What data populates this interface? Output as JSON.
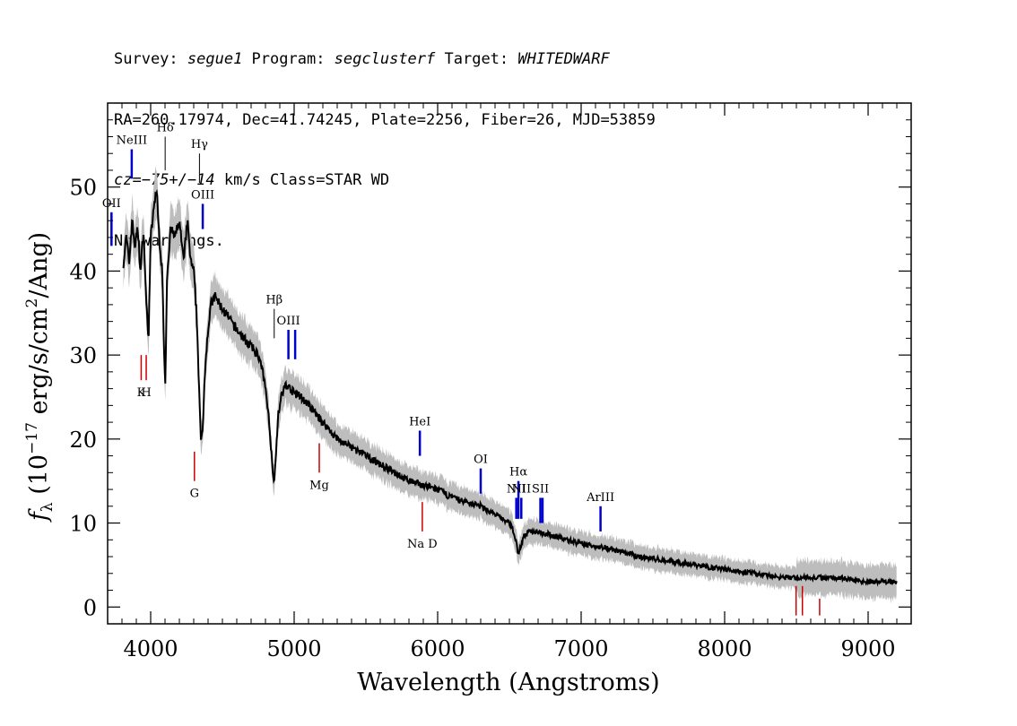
{
  "header": {
    "line1": {
      "survey_label": "Survey: ",
      "survey": "segue1",
      "program_label": " Program: ",
      "program": "segclusterf",
      "target_label": " Target: ",
      "target": "WHITEDWARF"
    },
    "line2": "RA=260.17974, Dec=41.74245, Plate=2256, Fiber=26, MJD=53859",
    "line3": {
      "cz_label": "cz",
      "cz_value": "=−75+/−14",
      "cz_unit": " km/s Class=STAR WD"
    },
    "line4": "No warnings."
  },
  "chart_data": {
    "type": "line",
    "xlabel": "Wavelength (Angstroms)",
    "ylabel": "fλ (10⁻¹⁷ erg/s/cm²/Ang)",
    "ylabel_parts": {
      "f": "f",
      "sub": "λ",
      "pre": " (10",
      "exp1": "−17",
      "mid": " erg/s/cm",
      "exp2": "2",
      "post": "/Ang)"
    },
    "xlim": [
      3700,
      9300
    ],
    "ylim": [
      -2,
      60
    ],
    "xticks": [
      4000,
      5000,
      6000,
      7000,
      8000,
      9000
    ],
    "yticks": [
      0,
      10,
      20,
      30,
      40,
      50
    ],
    "xtick_labels": [
      "4000",
      "5000",
      "6000",
      "7000",
      "8000",
      "9000"
    ],
    "ytick_labels": [
      "0",
      "10",
      "20",
      "30",
      "40",
      "50"
    ],
    "colors": {
      "flux": "#000000",
      "error_band": "#bdbdbd",
      "emission": "#0000cc",
      "absorption": "#cc0000"
    },
    "series": [
      {
        "x": [
          3810,
          3830,
          3850,
          3870,
          3890,
          3910,
          3930,
          3950,
          3970,
          3985,
          4000,
          4020,
          4040,
          4060,
          4080,
          4101,
          4115,
          4140,
          4170,
          4200,
          4230,
          4255,
          4280,
          4300,
          4320,
          4340,
          4350,
          4362,
          4380,
          4400,
          4420,
          4450,
          4480,
          4520,
          4560,
          4600,
          4650,
          4700,
          4750,
          4780,
          4810,
          4830,
          4850,
          4861,
          4875,
          4890,
          4910,
          4940,
          4970,
          5000,
          5050,
          5100,
          5150,
          5200,
          5300,
          5400,
          5500,
          5600,
          5700,
          5800,
          5900,
          6000,
          6100,
          6200,
          6300,
          6400,
          6500,
          6530,
          6550,
          6563,
          6575,
          6600,
          6650,
          6700,
          6800,
          6900,
          7000,
          7200,
          7400,
          7600,
          7800,
          8000,
          8200,
          8400,
          8600,
          8800,
          9000,
          9200
        ],
        "y": [
          41,
          44,
          41,
          46,
          43,
          45,
          40,
          45,
          36,
          32,
          44,
          47,
          50,
          44,
          40,
          26,
          40,
          45,
          44,
          46,
          41,
          46,
          41,
          40,
          35,
          25,
          19.5,
          21,
          29,
          33,
          36,
          37,
          36,
          35,
          34,
          33,
          32,
          31,
          30,
          28,
          25,
          21,
          16.5,
          14.8,
          19,
          23,
          25,
          26.5,
          26,
          25.5,
          25,
          24,
          23,
          22,
          20,
          19,
          18,
          17,
          16,
          15,
          14.5,
          14,
          13,
          12.5,
          12,
          11,
          10,
          9,
          7.5,
          6.2,
          7,
          8.5,
          9,
          9,
          8.5,
          8,
          7.5,
          7,
          6,
          5.5,
          5,
          4.5,
          4,
          3.5,
          3.5,
          3.5,
          3,
          3
        ]
      }
    ],
    "emission_lines": [
      {
        "label": "OII",
        "wavelength": 3727,
        "y_low": 43,
        "y_high": 47
      },
      {
        "label": "NeIII",
        "wavelength": 3868,
        "y_low": 51,
        "y_high": 54.5
      },
      {
        "label": "OIII",
        "wavelength": 4363,
        "y_low": 45,
        "y_high": 48
      },
      {
        "label": "OIII",
        "wavelength": 4960,
        "y_low": 29.5,
        "y_high": 33
      },
      {
        "label": "",
        "wavelength": 5007,
        "y_low": 29.5,
        "y_high": 33
      },
      {
        "label": "HeI",
        "wavelength": 5876,
        "y_low": 18,
        "y_high": 21
      },
      {
        "label": "OI",
        "wavelength": 6300,
        "y_low": 13.5,
        "y_high": 16.5
      },
      {
        "label": "NII",
        "wavelength": 6548,
        "y_low": 10.5,
        "y_high": 13
      },
      {
        "label": "Hα",
        "wavelength": 6563,
        "y_low": 10.5,
        "y_high": 15
      },
      {
        "label": "NII",
        "wavelength": 6583,
        "y_low": 10.5,
        "y_high": 13
      },
      {
        "label": "SII",
        "wavelength": 6716,
        "y_low": 10,
        "y_high": 13
      },
      {
        "label": "",
        "wavelength": 6731,
        "y_low": 10,
        "y_high": 13
      },
      {
        "label": "ArIII",
        "wavelength": 7135,
        "y_low": 9,
        "y_high": 12
      }
    ],
    "balmer_markers": [
      {
        "label": "Hδ",
        "wavelength": 4101,
        "y_low": 52,
        "y_high": 56
      },
      {
        "label": "Hγ",
        "wavelength": 4340,
        "y_low": 50.5,
        "y_high": 54
      },
      {
        "label": "Hβ",
        "wavelength": 4861,
        "y_low": 32,
        "y_high": 35.5
      }
    ],
    "absorption_lines": [
      {
        "label": "K",
        "wavelength": 3934,
        "y_low": 27,
        "y_high": 30
      },
      {
        "label": "H",
        "wavelength": 3969,
        "y_low": 27,
        "y_high": 30
      },
      {
        "label": "G",
        "wavelength": 4305,
        "y_low": 15,
        "y_high": 18.5
      },
      {
        "label": "Mg",
        "wavelength": 5175,
        "y_low": 16,
        "y_high": 19.5
      },
      {
        "label": "Na  D",
        "wavelength": 5893,
        "y_low": 9,
        "y_high": 12.5
      },
      {
        "label": "",
        "wavelength": 8498,
        "y_low": -1,
        "y_high": 2.5
      },
      {
        "label": "",
        "wavelength": 8542,
        "y_low": -1,
        "y_high": 2.5
      },
      {
        "label": "",
        "wavelength": 8662,
        "y_low": -1,
        "y_high": 1
      }
    ]
  }
}
